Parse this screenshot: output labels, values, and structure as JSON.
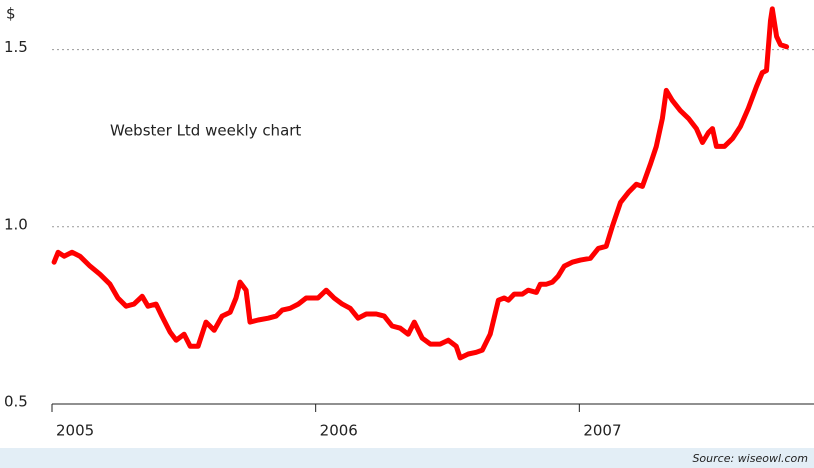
{
  "chart_data": {
    "type": "line",
    "title": "Webster Ltd weekly chart",
    "y_label": "$",
    "source": "Source: wiseowl.com",
    "color": "#ff0000",
    "grid": true,
    "xlim": [
      2005,
      2007.89
    ],
    "xticks": [
      2005,
      2006,
      2007
    ],
    "ylim": [
      0.5,
      1.64
    ],
    "yticks": [
      0.5,
      {
        "value": 1,
        "label": "1.0"
      },
      1.5
    ],
    "x": [
      2005.008,
      2005.023,
      2005.046,
      2005.076,
      2005.106,
      2005.144,
      2005.182,
      2005.22,
      2005.25,
      2005.281,
      2005.311,
      2005.342,
      2005.364,
      2005.395,
      2005.417,
      2005.448,
      2005.471,
      2005.501,
      2005.524,
      2005.554,
      2005.584,
      2005.615,
      2005.645,
      2005.676,
      2005.698,
      2005.713,
      2005.736,
      2005.751,
      2005.782,
      2005.82,
      2005.85,
      2005.873,
      2005.903,
      2005.934,
      2005.964,
      2006.009,
      2006.04,
      2006.07,
      2006.101,
      2006.131,
      2006.161,
      2006.192,
      2006.23,
      2006.26,
      2006.29,
      2006.321,
      2006.351,
      2006.374,
      2006.404,
      2006.435,
      2006.472,
      2006.503,
      2006.533,
      2006.548,
      2006.579,
      2006.609,
      2006.632,
      2006.662,
      2006.693,
      2006.715,
      2006.731,
      2006.753,
      2006.784,
      2006.806,
      2006.837,
      2006.852,
      2006.875,
      2006.898,
      2006.92,
      2006.943,
      2006.973,
      2007.004,
      2007.042,
      2007.072,
      2007.102,
      2007.125,
      2007.156,
      2007.186,
      2007.216,
      2007.239,
      2007.269,
      2007.292,
      2007.315,
      2007.33,
      2007.353,
      2007.383,
      2007.414,
      2007.444,
      2007.467,
      2007.49,
      2007.505,
      2007.52,
      2007.55,
      2007.581,
      2007.611,
      2007.641,
      2007.672,
      2007.694,
      2007.71,
      2007.725,
      2007.732,
      2007.748,
      2007.763,
      2007.786
    ],
    "values": [
      0.9,
      0.928,
      0.917,
      0.928,
      0.917,
      0.889,
      0.866,
      0.838,
      0.799,
      0.776,
      0.782,
      0.804,
      0.776,
      0.782,
      0.748,
      0.703,
      0.68,
      0.697,
      0.663,
      0.663,
      0.731,
      0.708,
      0.748,
      0.759,
      0.799,
      0.844,
      0.821,
      0.731,
      0.737,
      0.742,
      0.748,
      0.765,
      0.77,
      0.782,
      0.799,
      0.799,
      0.821,
      0.799,
      0.782,
      0.77,
      0.742,
      0.754,
      0.754,
      0.748,
      0.72,
      0.714,
      0.697,
      0.731,
      0.686,
      0.669,
      0.669,
      0.68,
      0.663,
      0.63,
      0.641,
      0.646,
      0.652,
      0.697,
      0.793,
      0.799,
      0.793,
      0.81,
      0.81,
      0.821,
      0.815,
      0.838,
      0.838,
      0.844,
      0.861,
      0.889,
      0.9,
      0.906,
      0.911,
      0.939,
      0.945,
      1.001,
      1.069,
      1.097,
      1.12,
      1.114,
      1.176,
      1.227,
      1.306,
      1.385,
      1.356,
      1.328,
      1.306,
      1.277,
      1.238,
      1.266,
      1.277,
      1.227,
      1.227,
      1.249,
      1.283,
      1.334,
      1.396,
      1.435,
      1.441,
      1.582,
      1.615,
      1.537,
      1.514,
      1.508
    ]
  }
}
